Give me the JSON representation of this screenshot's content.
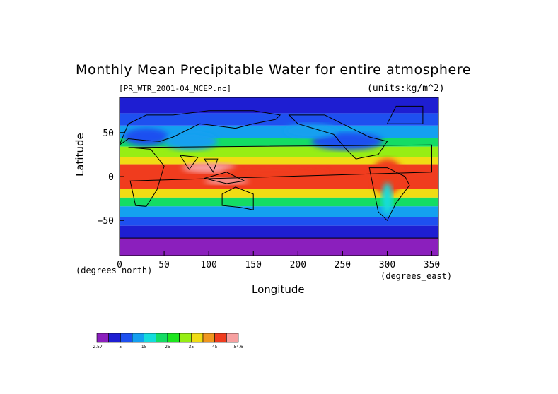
{
  "chart_data": {
    "type": "heatmap",
    "title": "Monthly Mean Precipitable Water for entire atmosphere",
    "subtitle_left": "[PR_WTR_2001-04_NCEP.nc]",
    "subtitle_right": "(units:kg/m^2)",
    "xlabel": "Longitude",
    "ylabel": "Latitude",
    "x_unit": "(degrees_east)",
    "y_unit": "(degrees_north)",
    "xlim": [
      0,
      357.5
    ],
    "ylim": [
      -90,
      90
    ],
    "x_ticks": [
      0,
      50,
      100,
      150,
      200,
      250,
      300,
      350
    ],
    "y_ticks": [
      -50,
      0,
      50
    ],
    "x_tick_labels": [
      "0",
      "50",
      "100",
      "150",
      "200",
      "250",
      "300",
      "350"
    ],
    "y_tick_labels": [
      "−50",
      "0",
      "50"
    ],
    "colorbar": {
      "labels": [
        "-2.57",
        "5",
        "15",
        "25",
        "35",
        "45",
        "54.6"
      ],
      "colors": [
        "#8b1fbd",
        "#1e1ed2",
        "#1e50f0",
        "#14a0f0",
        "#14dcdc",
        "#14dc64",
        "#1ee61e",
        "#96ee14",
        "#f0dc14",
        "#f0961e",
        "#f03c1e",
        "#f7a0a0"
      ],
      "min": -2.57,
      "max": 54.6
    }
  },
  "colors": {
    "axes": "#000000",
    "background": "#ffffff"
  }
}
